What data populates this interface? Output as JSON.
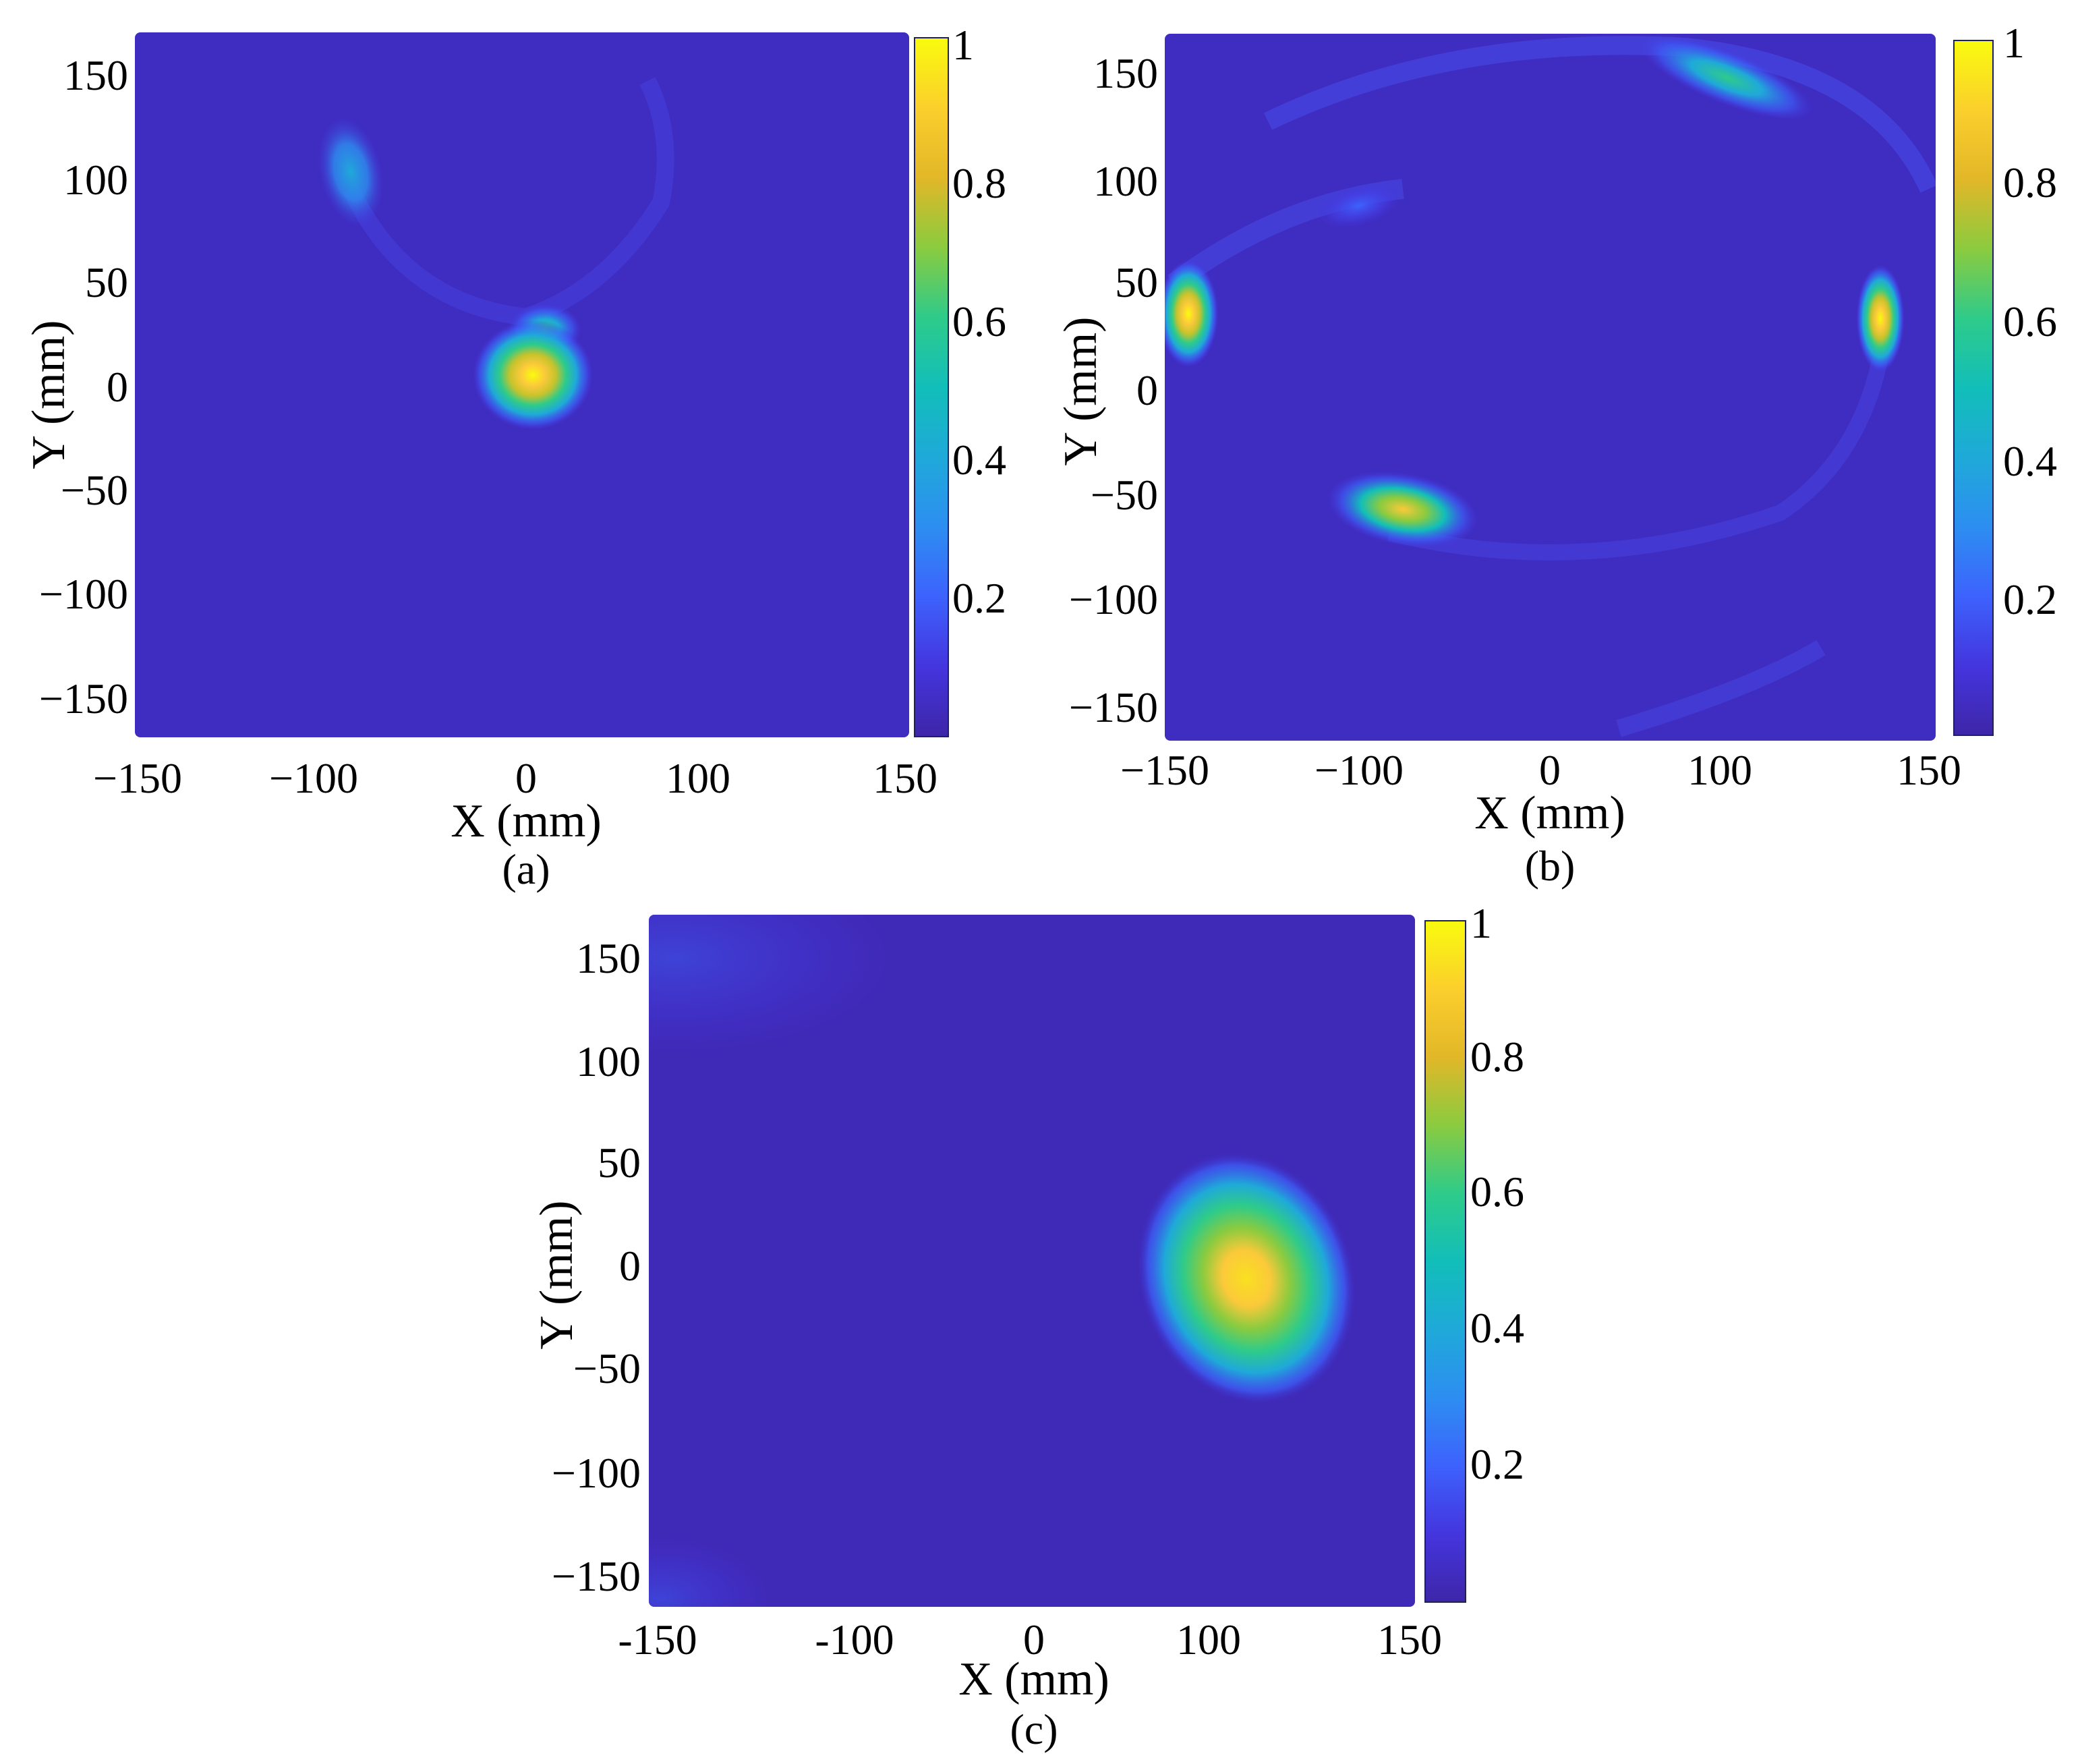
{
  "chart_data": [
    {
      "type": "heatmap",
      "panel_label": "(a)",
      "xlabel": "X (mm)",
      "ylabel": "Y (mm)",
      "xlim": [
        -150,
        150
      ],
      "ylim": [
        -170,
        170
      ],
      "xticks": [
        -150,
        -100,
        0,
        100,
        150
      ],
      "xtick_labels": [
        "−150",
        "−100",
        "0",
        "100",
        "150"
      ],
      "yticks": [
        150,
        100,
        50,
        0,
        -50,
        -100,
        -150
      ],
      "ytick_labels": [
        "150",
        "100",
        "50",
        "0",
        "−50",
        "−100",
        "−150"
      ],
      "colorbar": {
        "range": [
          0,
          1
        ],
        "ticks": [
          0.2,
          0.4,
          0.6,
          0.8,
          1
        ],
        "tick_labels": [
          "0.2",
          "0.4",
          "0.6",
          "0.8",
          "1"
        ]
      },
      "hotspots": [
        {
          "x": 3,
          "y": 5,
          "value": 0.95
        },
        {
          "x": 8,
          "y": 27,
          "value": 0.3
        },
        {
          "x": -100,
          "y": 105,
          "value": 0.35
        }
      ]
    },
    {
      "type": "heatmap",
      "panel_label": "(b)",
      "xlabel": "X (mm)",
      "ylabel": "Y (mm)",
      "xlim": [
        -150,
        150
      ],
      "ylim": [
        -165,
        165
      ],
      "xticks": [
        -150,
        -100,
        0,
        100,
        150
      ],
      "xtick_labels": [
        "−150",
        "−100",
        "0",
        "100",
        "150"
      ],
      "yticks": [
        150,
        100,
        50,
        0,
        -50,
        -100,
        -150
      ],
      "ytick_labels": [
        "150",
        "100",
        "50",
        "0",
        "−50",
        "−100",
        "−150"
      ],
      "colorbar": {
        "range": [
          0,
          1
        ],
        "ticks": [
          0.2,
          0.4,
          0.6,
          0.8,
          1
        ],
        "tick_labels": [
          "0.2",
          "0.4",
          "0.6",
          "0.8",
          "1"
        ]
      },
      "hotspots": [
        {
          "x": -146,
          "y": 35,
          "value": 0.9
        },
        {
          "x": 138,
          "y": 33,
          "value": 0.92
        },
        {
          "x": -85,
          "y": -58,
          "value": 0.8
        },
        {
          "x": 100,
          "y": 145,
          "value": 0.55
        },
        {
          "x": -100,
          "y": 85,
          "value": 0.2
        }
      ]
    },
    {
      "type": "heatmap",
      "panel_label": "(c)",
      "xlabel": "X (mm)",
      "ylabel": "Y (mm)",
      "xlim": [
        -150,
        150
      ],
      "ylim": [
        -165,
        170
      ],
      "xticks": [
        -150,
        -100,
        0,
        100,
        150
      ],
      "xtick_labels": [
        "-150",
        "-100",
        "0",
        "100",
        "150"
      ],
      "yticks": [
        150,
        100,
        50,
        0,
        -50,
        -100,
        -150
      ],
      "ytick_labels": [
        "150",
        "100",
        "50",
        "0",
        "−50",
        "−100",
        "−150"
      ],
      "colorbar": {
        "range": [
          0,
          1
        ],
        "ticks": [
          0.2,
          0.4,
          0.6,
          0.8,
          1
        ],
        "tick_labels": [
          "0.2",
          "0.4",
          "0.6",
          "0.8",
          "1"
        ]
      },
      "hotspots": [
        {
          "x": 115,
          "y": -2,
          "value": 0.95
        }
      ]
    }
  ]
}
